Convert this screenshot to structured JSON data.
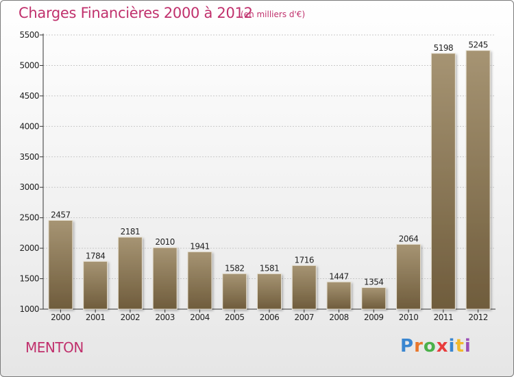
{
  "header": {
    "title": "Charges Financières 2000 à 2012",
    "subtitle": "(en milliers d'€)"
  },
  "footer": {
    "city": "MENTON",
    "logo": "Proxiti",
    "logo_colors": [
      "#3a86d0",
      "#e8762b",
      "#4bb04a",
      "#e83d3d",
      "#3a86d0",
      "#f2b92c",
      "#9b4fb6"
    ]
  },
  "colors": {
    "bar_top": "#a69473",
    "bar_bottom": "#6f5c3c",
    "title": "#c0306c"
  },
  "chart_data": {
    "type": "bar",
    "categories": [
      "2000",
      "2001",
      "2002",
      "2003",
      "2004",
      "2005",
      "2006",
      "2007",
      "2008",
      "2009",
      "2010",
      "2011",
      "2012"
    ],
    "values": [
      2457,
      1784,
      2181,
      2010,
      1941,
      1582,
      1581,
      1716,
      1447,
      1354,
      2064,
      5198,
      5245
    ],
    "ylim": [
      1000,
      5500
    ],
    "yticks": [
      "1000",
      "1500",
      "2000",
      "2500",
      "3000",
      "3500",
      "4000",
      "4500",
      "5000",
      "5500"
    ],
    "grid": true,
    "xlabel": "",
    "ylabel": ""
  }
}
